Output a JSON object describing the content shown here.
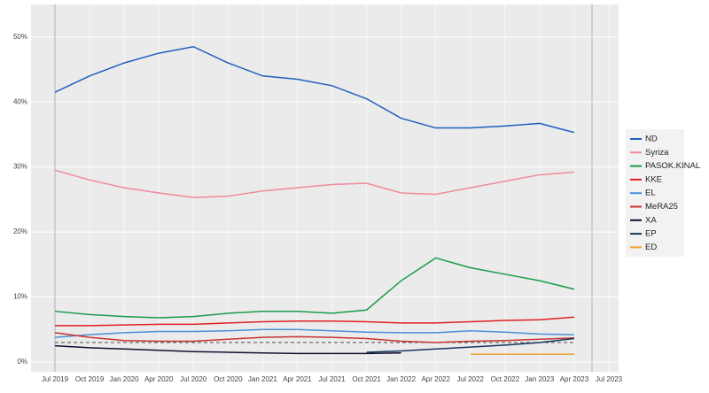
{
  "chart_data": {
    "type": "line",
    "categories": [
      "Jul 2019",
      "Oct 2019",
      "Jan 2020",
      "Apr 2020",
      "Jul 2020",
      "Oct 2020",
      "Jan 2021",
      "Apr 2021",
      "Jul 2021",
      "Oct 2021",
      "Jan 2022",
      "Apr 2022",
      "Jul 2022",
      "Oct 2022",
      "Jan 2023",
      "Apr 2023",
      "Jul 2023"
    ],
    "ylim": [
      -1.5,
      55
    ],
    "yticks": [
      {
        "value": 0,
        "label": "0%"
      },
      {
        "value": 10,
        "label": "10%"
      },
      {
        "value": 20,
        "label": "20%"
      },
      {
        "value": 30,
        "label": "30%"
      },
      {
        "value": 40,
        "label": "40%"
      },
      {
        "value": 50,
        "label": "50%"
      }
    ],
    "grid": true,
    "legend": "right",
    "threshold": 3,
    "series": [
      {
        "name": "ND",
        "color": "#1f5fbf",
        "values": [
          41.5,
          44,
          46,
          47.5,
          48.5,
          46,
          44,
          43.5,
          42.5,
          40.5,
          37.5,
          36,
          36,
          36.3,
          36.7,
          35.3,
          null
        ]
      },
      {
        "name": "Syriza",
        "color": "#f08a9a",
        "values": [
          29.5,
          28,
          26.8,
          26,
          25.3,
          25.5,
          26.3,
          26.8,
          27.3,
          27.5,
          26,
          25.8,
          26.8,
          27.8,
          28.8,
          29.2,
          null
        ]
      },
      {
        "name": "PASOK.KINAL",
        "color": "#1a9b4b",
        "values": [
          7.8,
          7.3,
          7,
          6.8,
          7,
          7.5,
          7.8,
          7.8,
          7.5,
          8,
          12.5,
          16,
          14.5,
          13.5,
          12.5,
          11.2,
          null
        ]
      },
      {
        "name": "KKE",
        "color": "#e02020",
        "values": [
          5.6,
          5.6,
          5.7,
          5.8,
          5.8,
          6,
          6.2,
          6.3,
          6.3,
          6.2,
          6,
          6,
          6.2,
          6.4,
          6.5,
          6.9,
          null
        ]
      },
      {
        "name": "EL",
        "color": "#4a90d9",
        "values": [
          3.8,
          4.2,
          4.5,
          4.7,
          4.7,
          4.8,
          5,
          5,
          4.8,
          4.6,
          4.5,
          4.5,
          4.8,
          4.6,
          4.3,
          4.2,
          null
        ]
      },
      {
        "name": "MeRA25",
        "color": "#c83232",
        "values": [
          4.5,
          3.8,
          3.3,
          3.2,
          3.2,
          3.5,
          3.8,
          3.9,
          3.8,
          3.6,
          3.2,
          3,
          3.2,
          3.3,
          3.5,
          3.7,
          null
        ]
      },
      {
        "name": "XA",
        "color": "#101030",
        "values": [
          2.5,
          2.2,
          2,
          1.8,
          1.6,
          1.5,
          1.4,
          1.3,
          1.3,
          1.3,
          1.4,
          null,
          null,
          null,
          null,
          null,
          null
        ]
      },
      {
        "name": "EP",
        "color": "#16365c",
        "values": [
          null,
          null,
          null,
          null,
          null,
          null,
          null,
          null,
          null,
          1.5,
          1.7,
          2,
          2.3,
          2.6,
          3,
          3.6,
          null
        ]
      },
      {
        "name": "ED",
        "color": "#f0a030",
        "values": [
          null,
          null,
          null,
          null,
          null,
          null,
          null,
          null,
          null,
          null,
          null,
          null,
          1.2,
          1.2,
          1.2,
          1.2,
          null
        ]
      }
    ]
  }
}
